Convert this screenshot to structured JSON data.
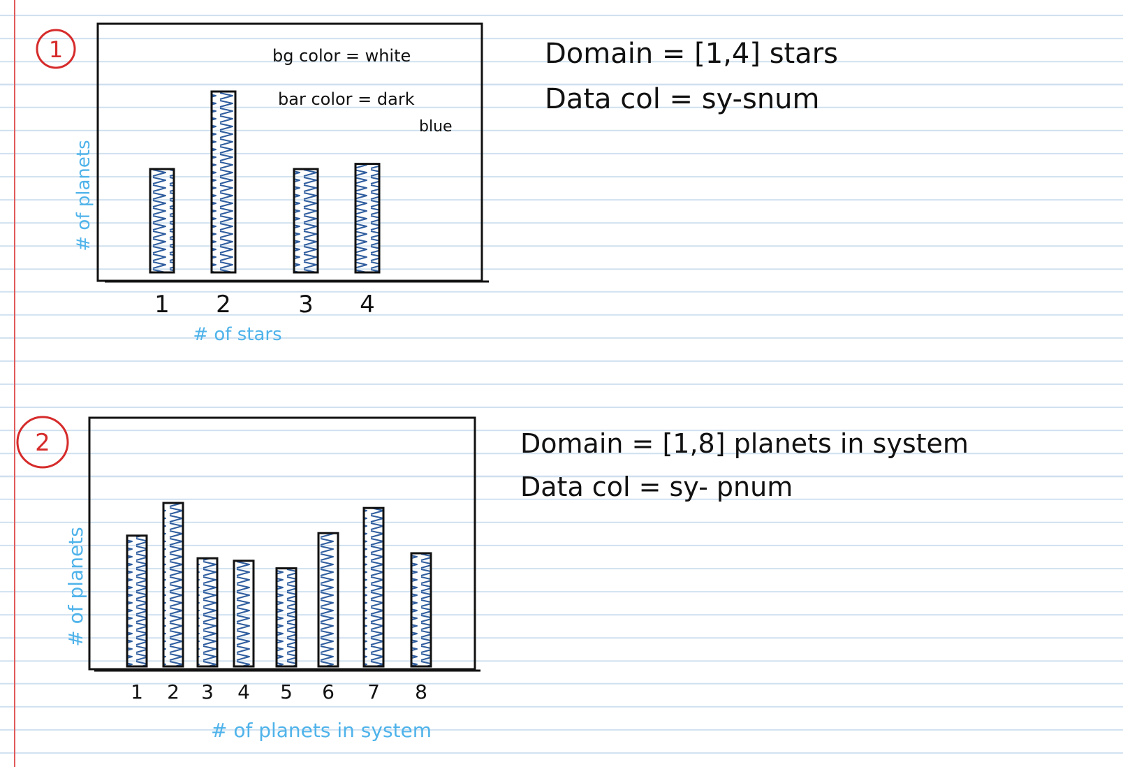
{
  "colors": {
    "paper": "#ffffff",
    "rule_lines": "#cfe0ef",
    "margin_line": "#e05a5a",
    "ink": "#111111",
    "axis_label_ink": "#4fb3ea",
    "circle_ink": "#d62b2b",
    "bar_squiggle": "#2f5d9e"
  },
  "sketches": [
    {
      "number": "1",
      "notes": [
        "bg color = white",
        "bar color = dark",
        "blue"
      ],
      "domain_text": "Domain = [1,4] stars",
      "data_col_text": "Data col = sy-snum"
    },
    {
      "number": "2",
      "domain_text": "Domain = [1,8] planets in system",
      "data_col_text": "Data col = sy- pnum"
    }
  ],
  "chart_data": [
    {
      "type": "bar",
      "title": "",
      "xlabel": "# of stars",
      "ylabel": "# of planets",
      "categories": [
        "1",
        "2",
        "3",
        "4"
      ],
      "values": [
        4,
        7,
        4,
        4.2
      ],
      "ylim": [
        0,
        10
      ],
      "grid": false,
      "note": "hand-drawn sketch; bar heights relative"
    },
    {
      "type": "bar",
      "title": "",
      "xlabel": "# of planets in system",
      "ylabel": "# of planets",
      "categories": [
        "1",
        "2",
        "3",
        "4",
        "5",
        "6",
        "7",
        "8"
      ],
      "values": [
        5.2,
        6.5,
        4.3,
        4.2,
        3.9,
        5.3,
        6.3,
        4.5
      ],
      "ylim": [
        0,
        10
      ],
      "grid": false,
      "note": "hand-drawn sketch; bar heights relative"
    }
  ]
}
